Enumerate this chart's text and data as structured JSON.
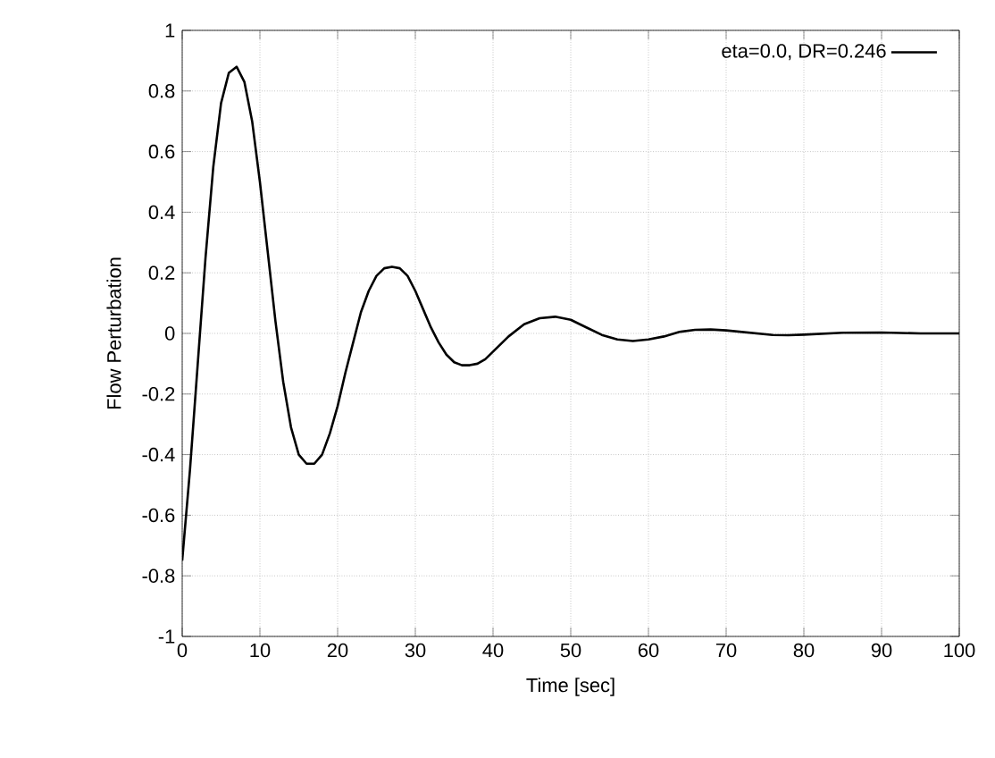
{
  "chart_data": {
    "type": "line",
    "xlabel": "Time [sec]",
    "ylabel": "Flow Perturbation",
    "xlim": [
      0,
      100
    ],
    "ylim": [
      -1,
      1
    ],
    "xticks": [
      0,
      10,
      20,
      30,
      40,
      50,
      60,
      70,
      80,
      90,
      100
    ],
    "yticks": [
      -1,
      -0.8,
      -0.6,
      -0.4,
      -0.2,
      0,
      0.2,
      0.4,
      0.6,
      0.8,
      1
    ],
    "grid": true,
    "legend": "top right",
    "marker": "none",
    "line_style": "solid",
    "series": [
      {
        "name": "eta=0.0, DR=0.246",
        "color": "#000000",
        "x": [
          0,
          1,
          2,
          3,
          4,
          5,
          6,
          7,
          8,
          9,
          10,
          11,
          12,
          13,
          14,
          15,
          16,
          17,
          18,
          19,
          20,
          21,
          22,
          23,
          24,
          25,
          26,
          27,
          28,
          29,
          30,
          31,
          32,
          33,
          34,
          35,
          36,
          37,
          38,
          39,
          40,
          42,
          44,
          46,
          48,
          50,
          52,
          54,
          56,
          58,
          60,
          62,
          64,
          66,
          68,
          70,
          72,
          74,
          76,
          78,
          80,
          85,
          90,
          95,
          100
        ],
        "values": [
          -0.75,
          -0.45,
          -0.1,
          0.25,
          0.55,
          0.76,
          0.86,
          0.88,
          0.83,
          0.7,
          0.5,
          0.27,
          0.04,
          -0.16,
          -0.31,
          -0.4,
          -0.43,
          -0.43,
          -0.4,
          -0.33,
          -0.24,
          -0.13,
          -0.03,
          0.07,
          0.14,
          0.19,
          0.215,
          0.22,
          0.215,
          0.19,
          0.14,
          0.08,
          0.02,
          -0.03,
          -0.07,
          -0.095,
          -0.105,
          -0.105,
          -0.1,
          -0.085,
          -0.06,
          -0.01,
          0.03,
          0.05,
          0.055,
          0.045,
          0.02,
          -0.005,
          -0.02,
          -0.025,
          -0.02,
          -0.01,
          0.005,
          0.012,
          0.013,
          0.01,
          0.005,
          0,
          -0.005,
          -0.006,
          -0.004,
          0.002,
          0.003,
          0,
          0
        ]
      }
    ]
  }
}
